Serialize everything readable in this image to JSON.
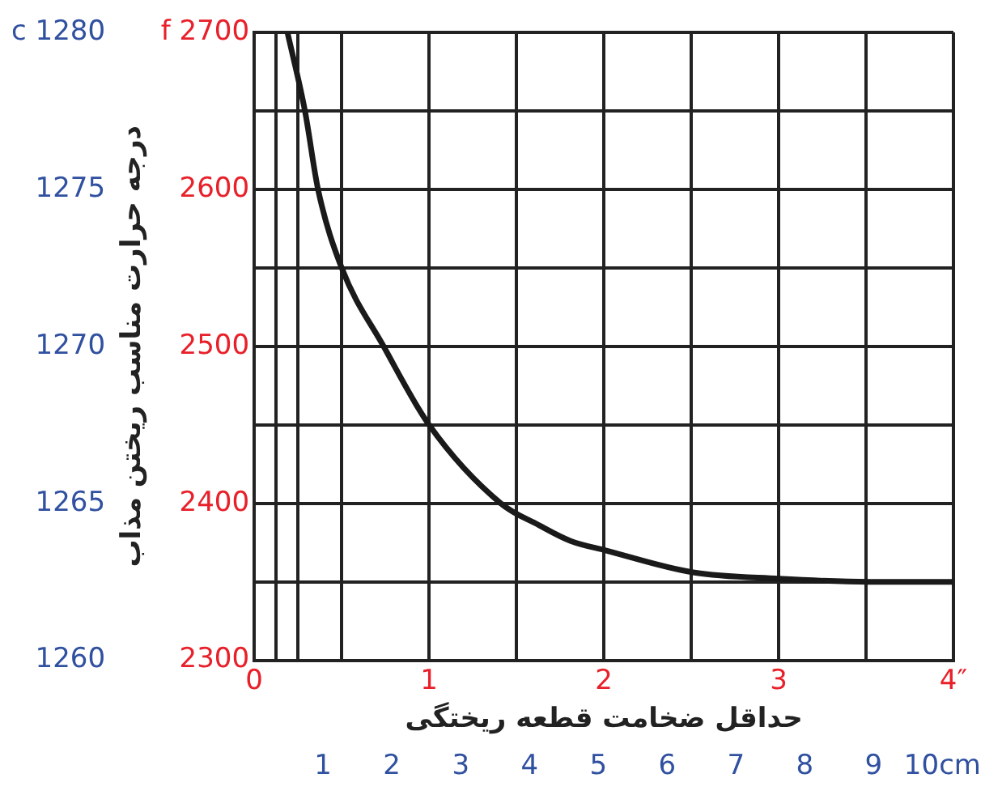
{
  "chart_data": {
    "type": "line",
    "xlabel": "حداقل ضخامت قطعه ریختگی",
    "ylabel": "درجه حرارت مناسب ریختن مذاب",
    "x": [
      0.19,
      0.29,
      0.365,
      0.5,
      0.74,
      1.0,
      1.41,
      1.63,
      1.81,
      2.01,
      2.51,
      3.0,
      3.52,
      4.0
    ],
    "series": [
      {
        "color": "#1a1a1a",
        "values": [
          2700,
          2650,
          2600,
          2550,
          2500,
          2450,
          2400,
          2386,
          2376,
          2370,
          2356,
          2352,
          2350,
          2350
        ]
      }
    ],
    "xlim": [
      0,
      4
    ],
    "xticks": [
      0,
      {
        "value": 0.125,
        "label": null
      },
      {
        "value": 0.25,
        "label": null
      },
      {
        "value": 0.5,
        "label": null
      },
      1,
      {
        "value": 1.5,
        "label": null
      },
      2,
      {
        "value": 2.5,
        "label": null
      },
      3,
      {
        "value": 3.5,
        "label": null
      },
      {
        "value": 4,
        "label": "4″"
      }
    ],
    "x2lim": [
      0,
      10.16
    ],
    "x2ticks": [
      1,
      2,
      3,
      4,
      5,
      6,
      7,
      8,
      9,
      {
        "value": 10,
        "label": "10cm"
      }
    ],
    "ylim": [
      2300,
      2700
    ],
    "yticks": [
      2300,
      {
        "value": 2350,
        "label": null
      },
      2400,
      {
        "value": 2450,
        "label": null
      },
      2500,
      {
        "value": 2550,
        "label": null
      },
      2600,
      {
        "value": 2650,
        "label": null
      },
      {
        "value": 2700,
        "label": "f 2700"
      }
    ],
    "y2lim": [
      1260,
      1280
    ],
    "y2ticks": [
      1260,
      1265,
      1270,
      1275,
      {
        "value": 1280,
        "label": "c 1280"
      }
    ],
    "grid": true,
    "legend": false,
    "marker": "none",
    "line_style": "solid"
  }
}
